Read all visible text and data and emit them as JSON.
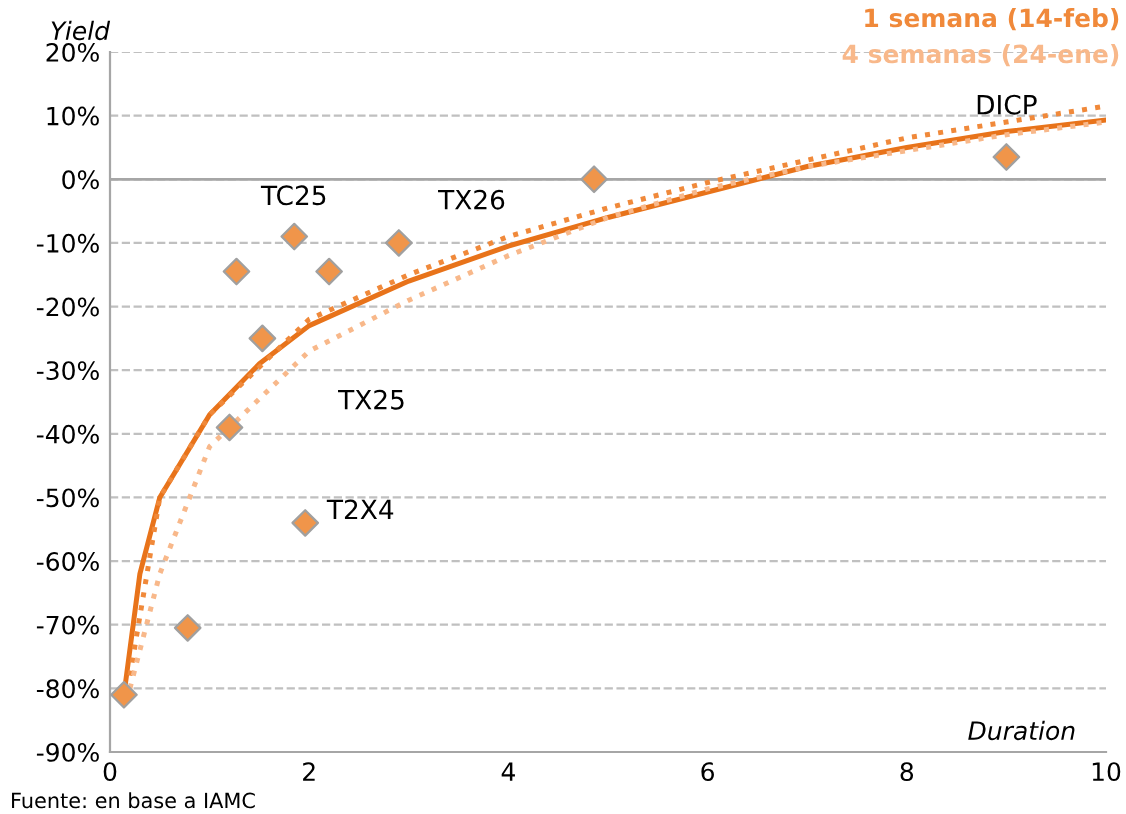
{
  "chart_data": {
    "type": "scatter",
    "ylabel": "Yield",
    "xlabel": "Duration",
    "xlim": [
      0,
      10
    ],
    "xticks": [
      0,
      2,
      4,
      6,
      8,
      10
    ],
    "ylim": [
      -90,
      20
    ],
    "yticks": [
      {
        "value": -90,
        "label": "-90%"
      },
      {
        "value": -80,
        "label": "-80%"
      },
      {
        "value": -70,
        "label": "-70%"
      },
      {
        "value": -60,
        "label": "-60%"
      },
      {
        "value": -50,
        "label": "-50%"
      },
      {
        "value": -40,
        "label": "-40%"
      },
      {
        "value": -30,
        "label": "-30%"
      },
      {
        "value": -20,
        "label": "-20%"
      },
      {
        "value": -10,
        "label": "-10%"
      },
      {
        "value": 0,
        "label": "0%"
      },
      {
        "value": 10,
        "label": "10%"
      },
      {
        "value": 20,
        "label": "20%"
      }
    ],
    "grid": "y",
    "legend": "top right",
    "marker": "diamond",
    "ref_lines": [
      {
        "axis": "y",
        "value": 0,
        "color": "#a6a6a6",
        "line_style": "solid"
      }
    ],
    "series": [
      {
        "color": "#f0954a",
        "x": [
          0.14,
          0.78,
          1.2,
          1.27,
          1.53,
          1.85,
          2.2,
          2.9,
          1.96,
          4.86,
          9.0
        ],
        "values": [
          -81,
          -70.5,
          -39,
          -14.5,
          -25,
          -9,
          -14.5,
          -10,
          -54,
          0,
          3.5
        ]
      },
      {
        "type": "line",
        "color": "#e8731a",
        "line_style": "solid",
        "marker": "none",
        "x": [
          0.14,
          0.3,
          0.5,
          1,
          1.5,
          2,
          3,
          4,
          5,
          6,
          7,
          8,
          9,
          10
        ],
        "values": [
          -81,
          -62,
          -50,
          -37,
          -29,
          -23,
          -16,
          -10.5,
          -6,
          -2,
          2,
          5,
          7.5,
          9.3
        ]
      },
      {
        "type": "line",
        "name": "1 semana (14-feb)",
        "color": "#f0893a",
        "line_style": "dotted",
        "marker": "none",
        "x": [
          0.2,
          0.5,
          1,
          2,
          3,
          4,
          5,
          6,
          7,
          8,
          9,
          10
        ],
        "values": [
          -78,
          -50,
          -37,
          -22,
          -15,
          -9,
          -4.5,
          -0.5,
          3,
          6.5,
          9,
          11.5
        ]
      },
      {
        "type": "line",
        "name": "4 semanas (24-ene)",
        "color": "#f8b88a",
        "line_style": "dotted",
        "marker": "none",
        "x": [
          0.2,
          0.5,
          1,
          2,
          3,
          4,
          5,
          6,
          7,
          8,
          9,
          10
        ],
        "values": [
          -80,
          -62,
          -42,
          -27,
          -19,
          -12,
          -6,
          -1.5,
          2,
          4.5,
          7,
          9
        ]
      }
    ],
    "annotations": [
      {
        "text": "TC25",
        "x": 1.85,
        "y": -9
      },
      {
        "text": "T2X4",
        "x": 1.96,
        "y": -54
      },
      {
        "text": "DICP",
        "x": 9.0,
        "y": 3.5
      },
      "TX26",
      "TX25",
      "Fuente: en base a IAMC"
    ]
  }
}
